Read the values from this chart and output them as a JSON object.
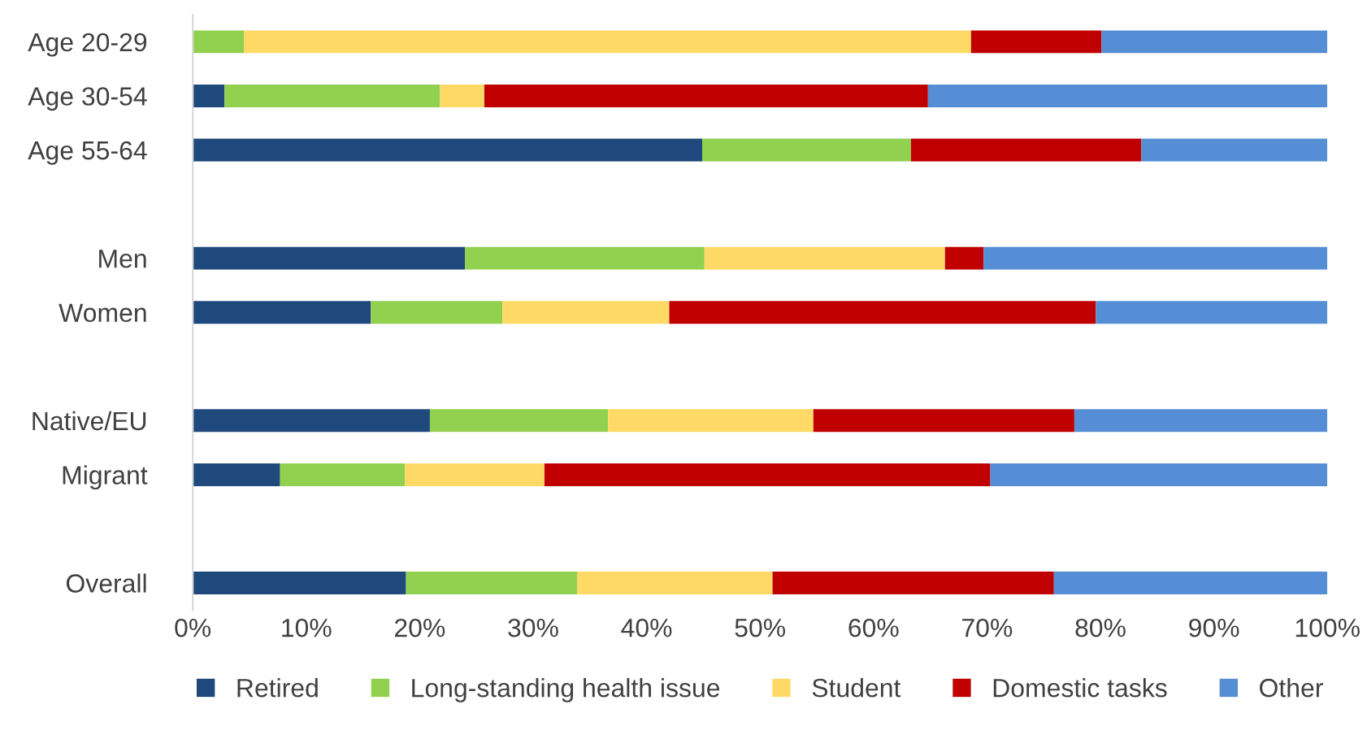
{
  "chart_data": {
    "type": "bar",
    "orientation": "horizontal",
    "stacked": true,
    "categories": [
      "Age 20-29",
      "Age 30-54",
      "Age 55-64",
      null,
      "Men",
      "Women",
      null,
      "Native/EU",
      "Migrant",
      null,
      "Overall"
    ],
    "series": [
      {
        "name": "Retired",
        "color": "#1f497d",
        "values": [
          0,
          2.8,
          44.9,
          null,
          24.0,
          15.7,
          null,
          20.9,
          7.7,
          null,
          18.8
        ]
      },
      {
        "name": "Long-standing health issue",
        "color": "#92d050",
        "values": [
          4.5,
          19.0,
          18.4,
          null,
          21.1,
          11.6,
          null,
          15.7,
          11.0,
          null,
          15.1
        ]
      },
      {
        "name": "Student",
        "color": "#ffd966",
        "values": [
          64.1,
          3.9,
          0,
          null,
          21.2,
          14.7,
          null,
          18.1,
          12.3,
          null,
          17.2
        ]
      },
      {
        "name": "Domestic tasks",
        "color": "#c00000",
        "values": [
          11.5,
          39.1,
          20.3,
          null,
          3.4,
          37.6,
          null,
          23.0,
          39.3,
          null,
          24.8
        ]
      },
      {
        "name": "Other",
        "color": "#558ed5",
        "values": [
          19.9,
          35.2,
          16.4,
          null,
          30.3,
          20.4,
          null,
          22.3,
          29.7,
          null,
          24.1
        ]
      }
    ],
    "xlim": [
      0,
      100
    ],
    "xticks": [
      {
        "value": 0,
        "label": "0%"
      },
      {
        "value": 10,
        "label": "10%"
      },
      {
        "value": 20,
        "label": "20%"
      },
      {
        "value": 30,
        "label": "30%"
      },
      {
        "value": 40,
        "label": "40%"
      },
      {
        "value": 50,
        "label": "50%"
      },
      {
        "value": 60,
        "label": "60%"
      },
      {
        "value": 70,
        "label": "70%"
      },
      {
        "value": 80,
        "label": "80%"
      },
      {
        "value": 90,
        "label": "90%"
      },
      {
        "value": 100,
        "label": "100%"
      }
    ],
    "grid": false,
    "legend": "bottom"
  }
}
